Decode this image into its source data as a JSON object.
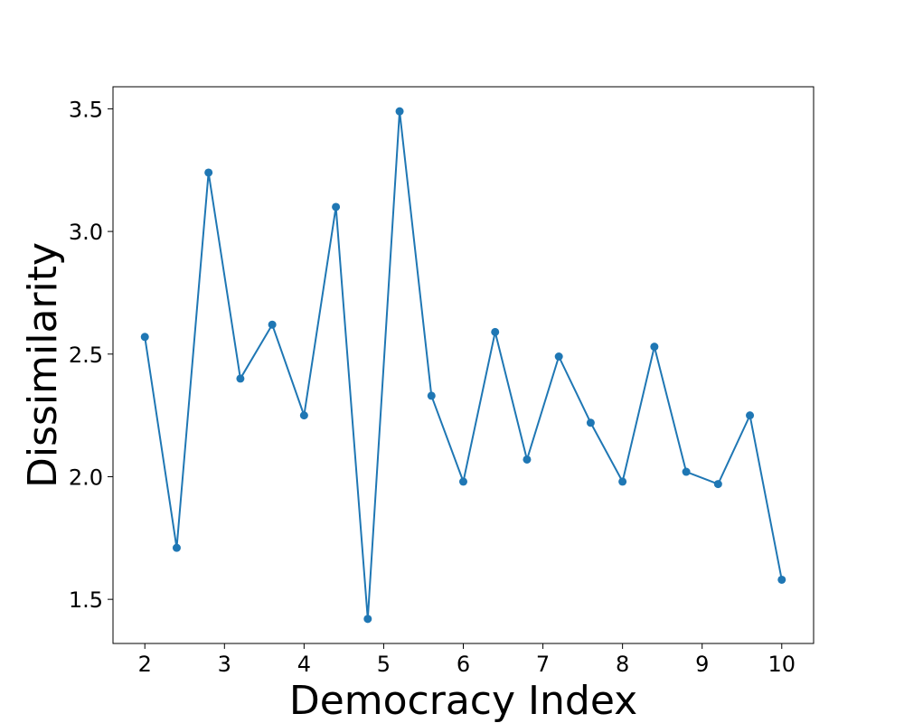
{
  "chart_data": {
    "type": "line",
    "title": "",
    "xlabel": "Democracy Index",
    "ylabel": "Dissimilarity",
    "xlim": [
      1.6,
      10.4
    ],
    "ylim": [
      1.32,
      3.59
    ],
    "x_ticks": [
      2,
      3,
      4,
      5,
      6,
      7,
      8,
      9,
      10
    ],
    "x_tick_labels": [
      "2",
      "3",
      "4",
      "5",
      "6",
      "7",
      "8",
      "9",
      "10"
    ],
    "y_ticks": [
      1.5,
      2.0,
      2.5,
      3.0,
      3.5
    ],
    "y_tick_labels": [
      "1.5",
      "2.0",
      "2.5",
      "3.0",
      "3.5"
    ],
    "grid": false,
    "series": [
      {
        "color": "#1f77b4",
        "marker": "circle",
        "x": [
          2.0,
          2.4,
          2.8,
          3.2,
          3.6,
          4.0,
          4.4,
          4.8,
          5.2,
          5.6,
          6.0,
          6.4,
          6.8,
          7.2,
          7.6,
          8.0,
          8.4,
          8.8,
          9.2,
          9.6,
          10.0
        ],
        "y": [
          2.57,
          1.71,
          3.24,
          2.4,
          2.62,
          2.25,
          3.1,
          1.42,
          3.49,
          2.33,
          1.98,
          2.59,
          2.07,
          2.49,
          2.22,
          1.98,
          2.53,
          2.02,
          1.97,
          2.25,
          1.58
        ]
      }
    ]
  }
}
